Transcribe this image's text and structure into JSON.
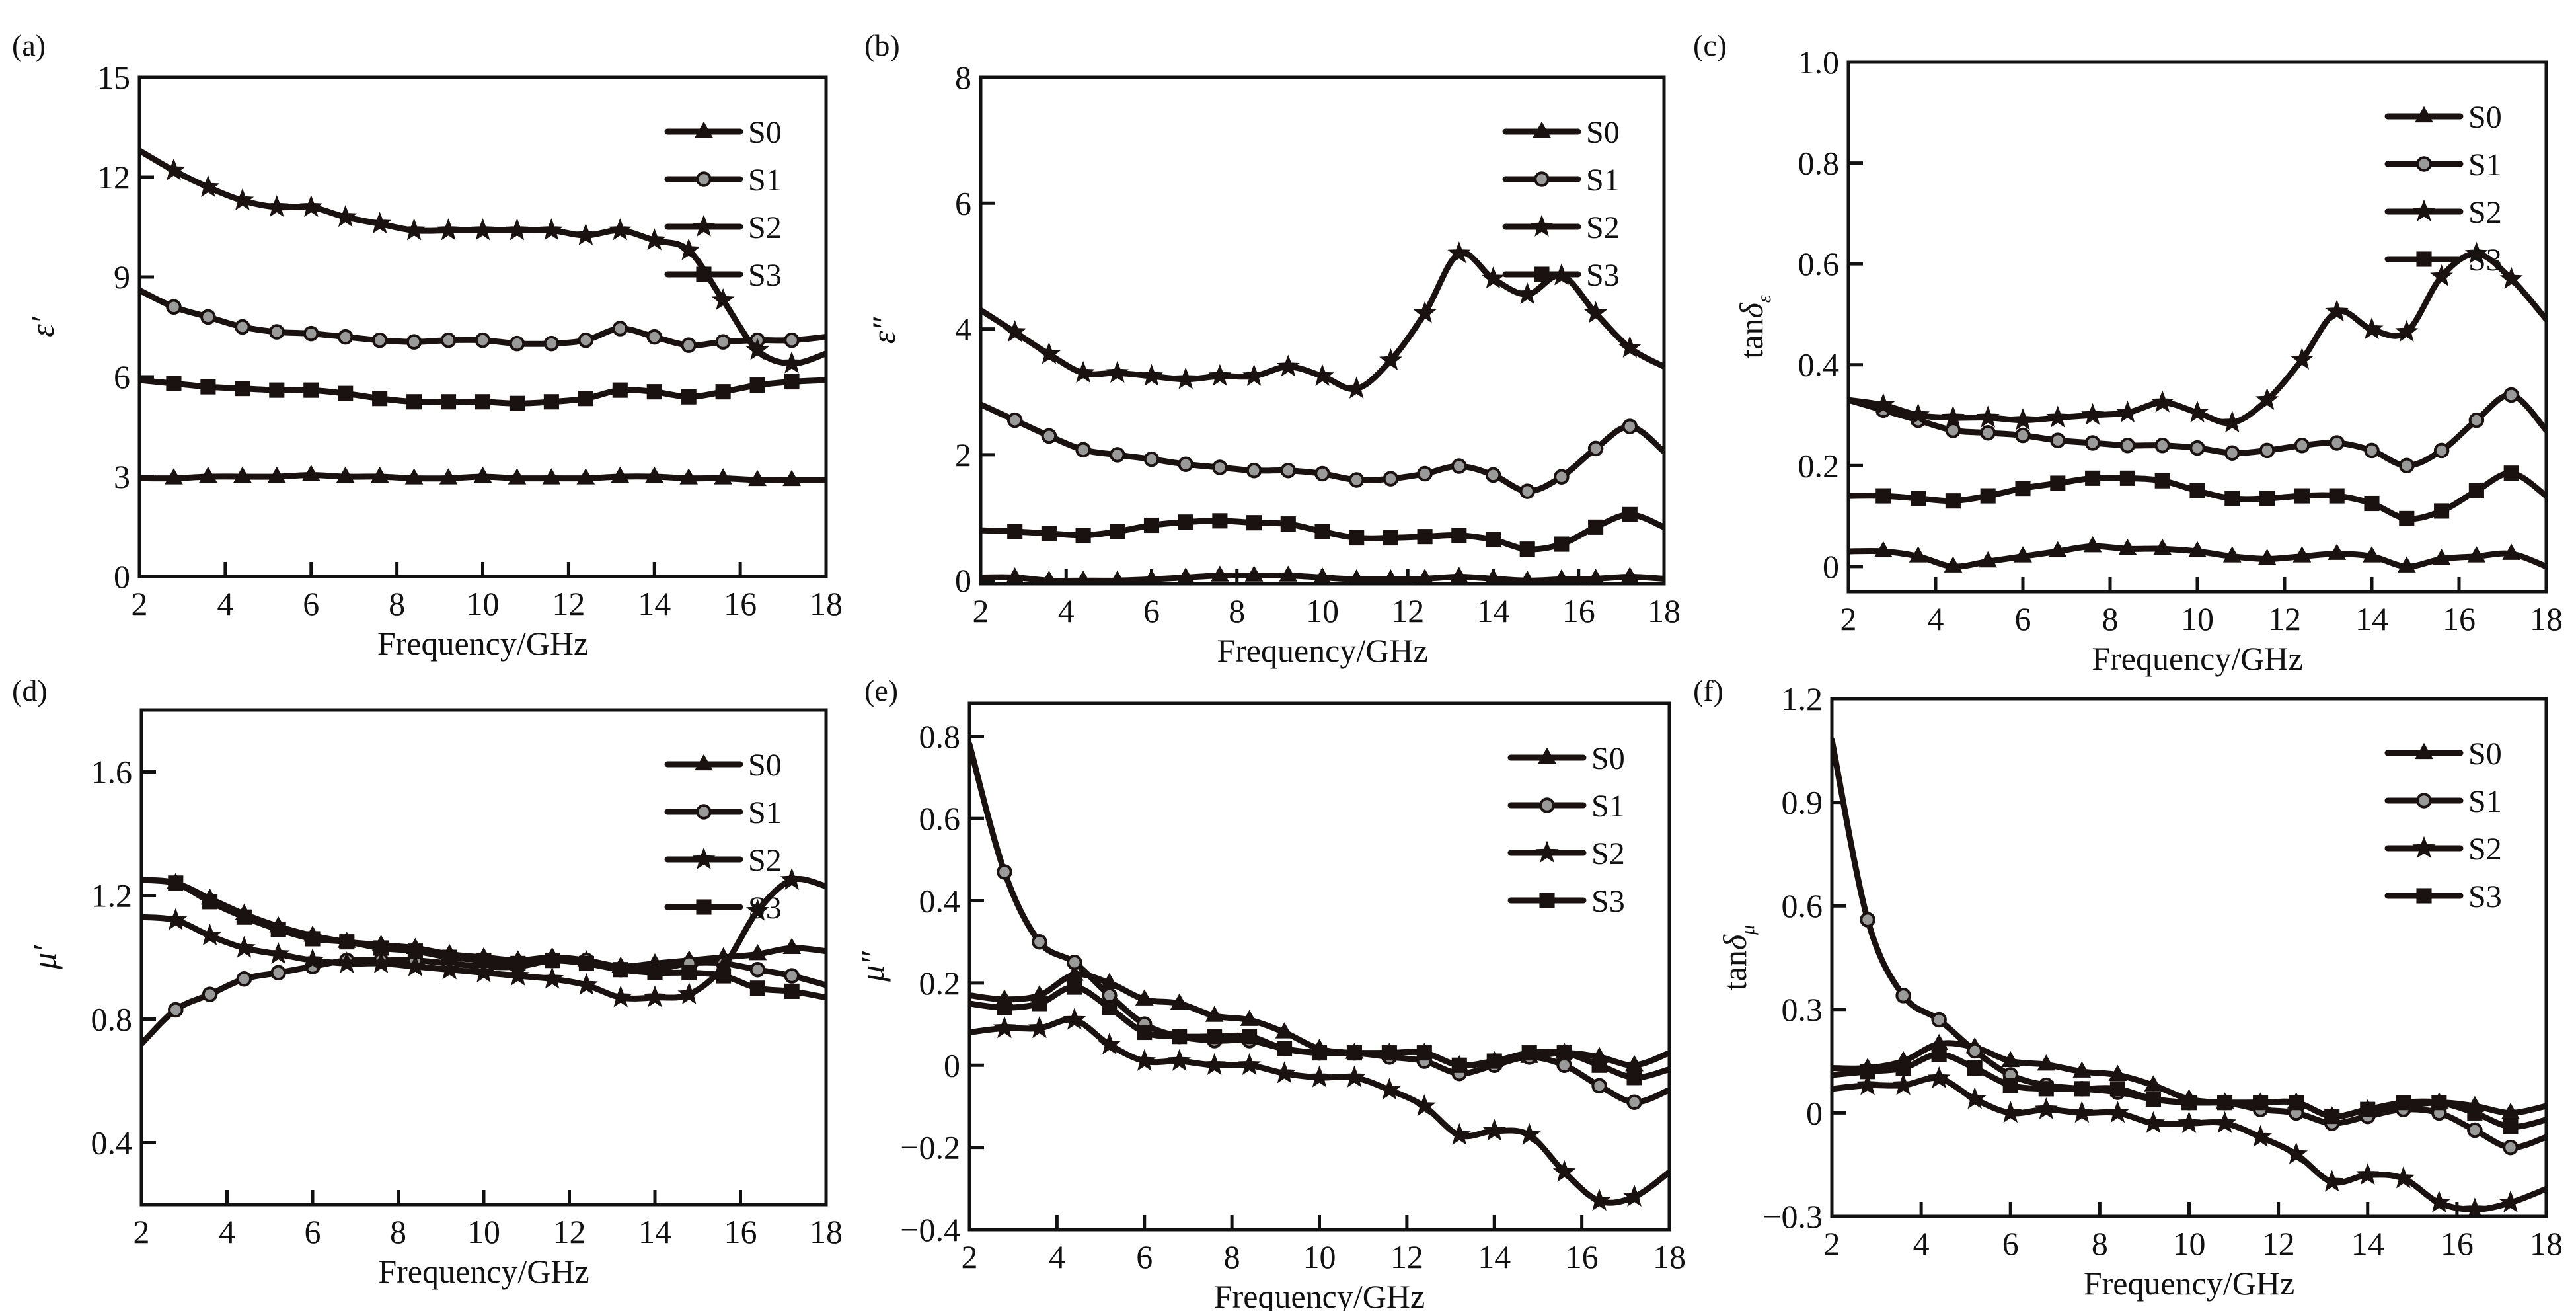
{
  "figure": {
    "panel_labels": [
      "(a)",
      "(b)",
      "(c)",
      "(d)",
      "(e)",
      "(f)"
    ]
  },
  "chart_data": [
    {
      "type": "line",
      "panel": "(a)",
      "title": "",
      "xlabel": "Frequency/GHz",
      "ylabel": "ε′",
      "ylabel_main": "ε",
      "ylabel_sup": "′",
      "ylabel_sub": "",
      "xlim": [
        2,
        18
      ],
      "ylim": [
        0,
        15
      ],
      "xticks": [
        2,
        4,
        6,
        8,
        10,
        12,
        14,
        16,
        18
      ],
      "yticks": [
        0,
        3,
        6,
        9,
        12,
        15
      ],
      "ytick_labels": [
        "0",
        "3",
        "6",
        "9",
        "12",
        "15"
      ],
      "legend_position": "top-right",
      "grid": false,
      "x": [
        2.0,
        2.8,
        3.6,
        4.4,
        5.2,
        6.0,
        6.8,
        7.6,
        8.4,
        9.2,
        10.0,
        10.8,
        11.6,
        12.4,
        13.2,
        14.0,
        14.8,
        15.6,
        16.4,
        17.2,
        18.0
      ],
      "series": [
        {
          "name": "S0",
          "marker": "triangle",
          "values": [
            2.95,
            2.95,
            3.0,
            3.0,
            3.0,
            3.05,
            3.0,
            3.0,
            2.95,
            2.95,
            3.0,
            2.95,
            2.95,
            2.95,
            3.0,
            3.0,
            2.95,
            2.95,
            2.9,
            2.9,
            2.9
          ]
        },
        {
          "name": "S1",
          "marker": "circle",
          "values": [
            8.6,
            8.1,
            7.8,
            7.5,
            7.35,
            7.3,
            7.2,
            7.1,
            7.05,
            7.1,
            7.1,
            7.0,
            7.0,
            7.1,
            7.45,
            7.2,
            6.95,
            7.05,
            7.1,
            7.1,
            7.2
          ]
        },
        {
          "name": "S2",
          "marker": "star",
          "values": [
            12.8,
            12.2,
            11.7,
            11.3,
            11.1,
            11.1,
            10.8,
            10.6,
            10.4,
            10.4,
            10.4,
            10.4,
            10.4,
            10.25,
            10.4,
            10.1,
            9.8,
            8.3,
            6.8,
            6.4,
            6.7
          ]
        },
        {
          "name": "S3",
          "marker": "square",
          "values": [
            5.9,
            5.8,
            5.7,
            5.65,
            5.6,
            5.6,
            5.5,
            5.35,
            5.25,
            5.25,
            5.25,
            5.2,
            5.25,
            5.35,
            5.6,
            5.55,
            5.4,
            5.55,
            5.75,
            5.85,
            5.9
          ]
        }
      ]
    },
    {
      "type": "line",
      "panel": "(b)",
      "title": "",
      "xlabel": "Frequency/GHz",
      "ylabel": "ε″",
      "ylabel_main": "ε",
      "ylabel_sup": "″",
      "ylabel_sub": "",
      "xlim": [
        2,
        18
      ],
      "ylim": [
        -0.05,
        8
      ],
      "xticks": [
        2,
        4,
        6,
        8,
        10,
        12,
        14,
        16,
        18
      ],
      "yticks": [
        0,
        2,
        4,
        6,
        8
      ],
      "ytick_labels": [
        "0",
        "2",
        "4",
        "6",
        "8"
      ],
      "legend_position": "top-right",
      "grid": false,
      "x": [
        2.0,
        2.8,
        3.6,
        4.4,
        5.2,
        6.0,
        6.8,
        7.6,
        8.4,
        9.2,
        10.0,
        10.8,
        11.6,
        12.4,
        13.2,
        14.0,
        14.8,
        15.6,
        16.4,
        17.2,
        18.0
      ],
      "series": [
        {
          "name": "S0",
          "marker": "triangle",
          "values": [
            0.05,
            0.05,
            0.0,
            0.0,
            0.0,
            0.02,
            0.05,
            0.08,
            0.08,
            0.08,
            0.05,
            0.02,
            0.02,
            0.03,
            0.06,
            0.03,
            0.0,
            0.02,
            0.03,
            0.06,
            0.03
          ]
        },
        {
          "name": "S1",
          "marker": "circle",
          "values": [
            2.8,
            2.55,
            2.3,
            2.08,
            2.0,
            1.93,
            1.85,
            1.8,
            1.75,
            1.75,
            1.7,
            1.6,
            1.62,
            1.7,
            1.82,
            1.68,
            1.42,
            1.65,
            2.1,
            2.45,
            2.05
          ]
        },
        {
          "name": "S2",
          "marker": "star",
          "values": [
            4.3,
            3.95,
            3.6,
            3.3,
            3.3,
            3.25,
            3.2,
            3.25,
            3.25,
            3.4,
            3.25,
            3.05,
            3.5,
            4.25,
            5.2,
            4.8,
            4.55,
            4.85,
            4.25,
            3.7,
            3.4
          ]
        },
        {
          "name": "S3",
          "marker": "square",
          "values": [
            0.8,
            0.78,
            0.75,
            0.72,
            0.78,
            0.88,
            0.93,
            0.95,
            0.92,
            0.9,
            0.78,
            0.68,
            0.68,
            0.7,
            0.72,
            0.65,
            0.5,
            0.58,
            0.85,
            1.05,
            0.85
          ]
        }
      ]
    },
    {
      "type": "line",
      "panel": "(c)",
      "title": "",
      "xlabel": "Frequency/GHz",
      "ylabel": "tanδε",
      "ylabel_main": "tanδ",
      "ylabel_sup": "",
      "ylabel_sub": "ε",
      "xlim": [
        2,
        18
      ],
      "ylim": [
        -0.05,
        1.0
      ],
      "xticks": [
        2,
        4,
        6,
        8,
        10,
        12,
        14,
        16,
        18
      ],
      "yticks": [
        0,
        0.2,
        0.4,
        0.6,
        0.8,
        1.0
      ],
      "ytick_labels": [
        "0",
        "0.2",
        "0.4",
        "0.6",
        "0.8",
        "1.0"
      ],
      "legend_position": "top-right",
      "grid": false,
      "x": [
        2.0,
        2.8,
        3.6,
        4.4,
        5.2,
        6.0,
        6.8,
        7.6,
        8.4,
        9.2,
        10.0,
        10.8,
        11.6,
        12.4,
        13.2,
        14.0,
        14.8,
        15.6,
        16.4,
        17.2,
        18.0
      ],
      "series": [
        {
          "name": "S0",
          "marker": "triangle",
          "values": [
            0.03,
            0.03,
            0.02,
            0.0,
            0.01,
            0.02,
            0.03,
            0.04,
            0.035,
            0.035,
            0.03,
            0.02,
            0.015,
            0.02,
            0.025,
            0.02,
            0.0,
            0.015,
            0.02,
            0.025,
            0.0
          ]
        },
        {
          "name": "S1",
          "marker": "circle",
          "values": [
            0.33,
            0.31,
            0.29,
            0.27,
            0.265,
            0.26,
            0.25,
            0.245,
            0.24,
            0.24,
            0.235,
            0.225,
            0.23,
            0.24,
            0.245,
            0.23,
            0.2,
            0.23,
            0.29,
            0.34,
            0.27
          ]
        },
        {
          "name": "S2",
          "marker": "star",
          "values": [
            0.33,
            0.32,
            0.3,
            0.295,
            0.295,
            0.29,
            0.295,
            0.3,
            0.305,
            0.325,
            0.305,
            0.285,
            0.33,
            0.41,
            0.505,
            0.47,
            0.465,
            0.575,
            0.62,
            0.57,
            0.49
          ]
        },
        {
          "name": "S3",
          "marker": "square",
          "values": [
            0.14,
            0.14,
            0.135,
            0.13,
            0.14,
            0.155,
            0.165,
            0.175,
            0.175,
            0.17,
            0.15,
            0.135,
            0.135,
            0.14,
            0.14,
            0.125,
            0.095,
            0.11,
            0.15,
            0.185,
            0.14
          ]
        }
      ]
    },
    {
      "type": "line",
      "panel": "(d)",
      "title": "",
      "xlabel": "Frequency/GHz",
      "ylabel": "μ′",
      "ylabel_main": "μ",
      "ylabel_sup": "′",
      "ylabel_sub": "",
      "xlim": [
        2,
        18
      ],
      "ylim": [
        0.2,
        1.8
      ],
      "xticks": [
        2,
        4,
        6,
        8,
        10,
        12,
        14,
        16,
        18
      ],
      "yticks": [
        0.4,
        0.8,
        1.2,
        1.6
      ],
      "ytick_labels": [
        "0.4",
        "0.8",
        "1.2",
        "1.6"
      ],
      "legend_position": "top-right",
      "grid": false,
      "x": [
        2.0,
        2.8,
        3.6,
        4.4,
        5.2,
        6.0,
        6.8,
        7.6,
        8.4,
        9.2,
        10.0,
        10.8,
        11.6,
        12.4,
        13.2,
        14.0,
        14.8,
        15.6,
        16.4,
        17.2,
        18.0
      ],
      "series": [
        {
          "name": "S0",
          "marker": "triangle",
          "values": [
            1.25,
            1.24,
            1.19,
            1.14,
            1.1,
            1.07,
            1.05,
            1.04,
            1.03,
            1.01,
            1.0,
            0.99,
            1.0,
            0.99,
            0.97,
            0.98,
            0.99,
            1.0,
            1.01,
            1.03,
            1.02
          ]
        },
        {
          "name": "S1",
          "marker": "circle",
          "values": [
            0.72,
            0.83,
            0.88,
            0.93,
            0.95,
            0.97,
            0.99,
            0.99,
            0.99,
            0.98,
            0.97,
            0.97,
            0.99,
            0.99,
            0.96,
            0.96,
            0.98,
            0.98,
            0.96,
            0.94,
            0.91
          ]
        },
        {
          "name": "S2",
          "marker": "star",
          "values": [
            1.13,
            1.12,
            1.07,
            1.03,
            1.01,
            0.99,
            0.98,
            0.98,
            0.97,
            0.96,
            0.95,
            0.94,
            0.93,
            0.91,
            0.87,
            0.87,
            0.88,
            0.97,
            1.15,
            1.25,
            1.23
          ]
        },
        {
          "name": "S3",
          "marker": "square",
          "values": [
            1.25,
            1.24,
            1.18,
            1.13,
            1.09,
            1.06,
            1.05,
            1.03,
            1.02,
            1.0,
            0.99,
            0.98,
            0.99,
            0.98,
            0.96,
            0.95,
            0.95,
            0.94,
            0.9,
            0.89,
            0.87
          ]
        }
      ]
    },
    {
      "type": "line",
      "panel": "(e)",
      "title": "",
      "xlabel": "Frequency/GHz",
      "ylabel": "μ″",
      "ylabel_main": "μ",
      "ylabel_sup": "″",
      "ylabel_sub": "",
      "xlim": [
        2,
        18
      ],
      "ylim": [
        -0.4,
        0.88
      ],
      "xticks": [
        2,
        4,
        6,
        8,
        10,
        12,
        14,
        16,
        18
      ],
      "yticks": [
        -0.4,
        -0.2,
        0,
        0.2,
        0.4,
        0.6,
        0.8
      ],
      "ytick_labels": [
        "−0.4",
        "−0.2",
        "0",
        "0.2",
        "0.4",
        "0.6",
        "0.8"
      ],
      "legend_position": "top-right",
      "grid": false,
      "x": [
        2.0,
        2.8,
        3.6,
        4.4,
        5.2,
        6.0,
        6.8,
        7.6,
        8.4,
        9.2,
        10.0,
        10.8,
        11.6,
        12.4,
        13.2,
        14.0,
        14.8,
        15.6,
        16.4,
        17.2,
        18.0
      ],
      "series": [
        {
          "name": "S0",
          "marker": "triangle",
          "values": [
            0.17,
            0.16,
            0.17,
            0.22,
            0.2,
            0.16,
            0.15,
            0.12,
            0.11,
            0.08,
            0.04,
            0.03,
            0.03,
            0.03,
            0.0,
            0.01,
            0.02,
            0.03,
            0.02,
            0.0,
            0.03
          ]
        },
        {
          "name": "S1",
          "marker": "circle",
          "values": [
            0.78,
            0.47,
            0.3,
            0.25,
            0.17,
            0.1,
            0.07,
            0.06,
            0.06,
            0.04,
            0.03,
            0.03,
            0.02,
            0.01,
            -0.02,
            0.0,
            0.02,
            0.0,
            -0.05,
            -0.09,
            -0.06
          ]
        },
        {
          "name": "S2",
          "marker": "star",
          "values": [
            0.08,
            0.09,
            0.09,
            0.11,
            0.05,
            0.01,
            0.01,
            0.0,
            0.0,
            -0.02,
            -0.03,
            -0.03,
            -0.06,
            -0.1,
            -0.17,
            -0.16,
            -0.17,
            -0.26,
            -0.33,
            -0.32,
            -0.26
          ]
        },
        {
          "name": "S3",
          "marker": "square",
          "values": [
            0.15,
            0.14,
            0.15,
            0.19,
            0.14,
            0.08,
            0.07,
            0.07,
            0.07,
            0.04,
            0.03,
            0.03,
            0.03,
            0.03,
            0.0,
            0.01,
            0.03,
            0.03,
            0.0,
            -0.03,
            -0.01
          ]
        }
      ]
    },
    {
      "type": "line",
      "panel": "(f)",
      "title": "",
      "xlabel": "Frequency/GHz",
      "ylabel": "tanδμ",
      "ylabel_main": "tanδ",
      "ylabel_sup": "",
      "ylabel_sub": "μ",
      "xlim": [
        2,
        18
      ],
      "ylim": [
        -0.3,
        1.2
      ],
      "xticks": [
        2,
        4,
        6,
        8,
        10,
        12,
        14,
        16,
        18
      ],
      "yticks": [
        -0.3,
        0,
        0.3,
        0.6,
        0.9,
        1.2
      ],
      "ytick_labels": [
        "−0.3",
        "0",
        "0.3",
        "0.6",
        "0.9",
        "1.2"
      ],
      "legend_position": "top-right",
      "grid": false,
      "x": [
        2.0,
        2.8,
        3.6,
        4.4,
        5.2,
        6.0,
        6.8,
        7.6,
        8.4,
        9.2,
        10.0,
        10.8,
        11.6,
        12.4,
        13.2,
        14.0,
        14.8,
        15.6,
        16.4,
        17.2,
        18.0
      ],
      "series": [
        {
          "name": "S0",
          "marker": "triangle",
          "values": [
            0.13,
            0.13,
            0.15,
            0.2,
            0.19,
            0.15,
            0.14,
            0.12,
            0.11,
            0.08,
            0.04,
            0.03,
            0.03,
            0.03,
            -0.01,
            0.01,
            0.02,
            0.03,
            0.02,
            0.0,
            0.02
          ]
        },
        {
          "name": "S1",
          "marker": "circle",
          "values": [
            1.08,
            0.56,
            0.34,
            0.27,
            0.18,
            0.11,
            0.08,
            0.07,
            0.06,
            0.04,
            0.03,
            0.03,
            0.01,
            0.0,
            -0.03,
            -0.01,
            0.01,
            0.0,
            -0.05,
            -0.1,
            -0.07
          ]
        },
        {
          "name": "S2",
          "marker": "star",
          "values": [
            0.07,
            0.08,
            0.08,
            0.1,
            0.04,
            0.0,
            0.01,
            0.0,
            0.0,
            -0.03,
            -0.03,
            -0.03,
            -0.07,
            -0.12,
            -0.2,
            -0.18,
            -0.19,
            -0.26,
            -0.28,
            -0.26,
            -0.22
          ]
        },
        {
          "name": "S3",
          "marker": "square",
          "values": [
            0.11,
            0.12,
            0.13,
            0.17,
            0.13,
            0.08,
            0.07,
            0.07,
            0.07,
            0.04,
            0.03,
            0.03,
            0.03,
            0.03,
            -0.01,
            0.01,
            0.03,
            0.03,
            0.0,
            -0.04,
            -0.02
          ]
        }
      ]
    }
  ]
}
